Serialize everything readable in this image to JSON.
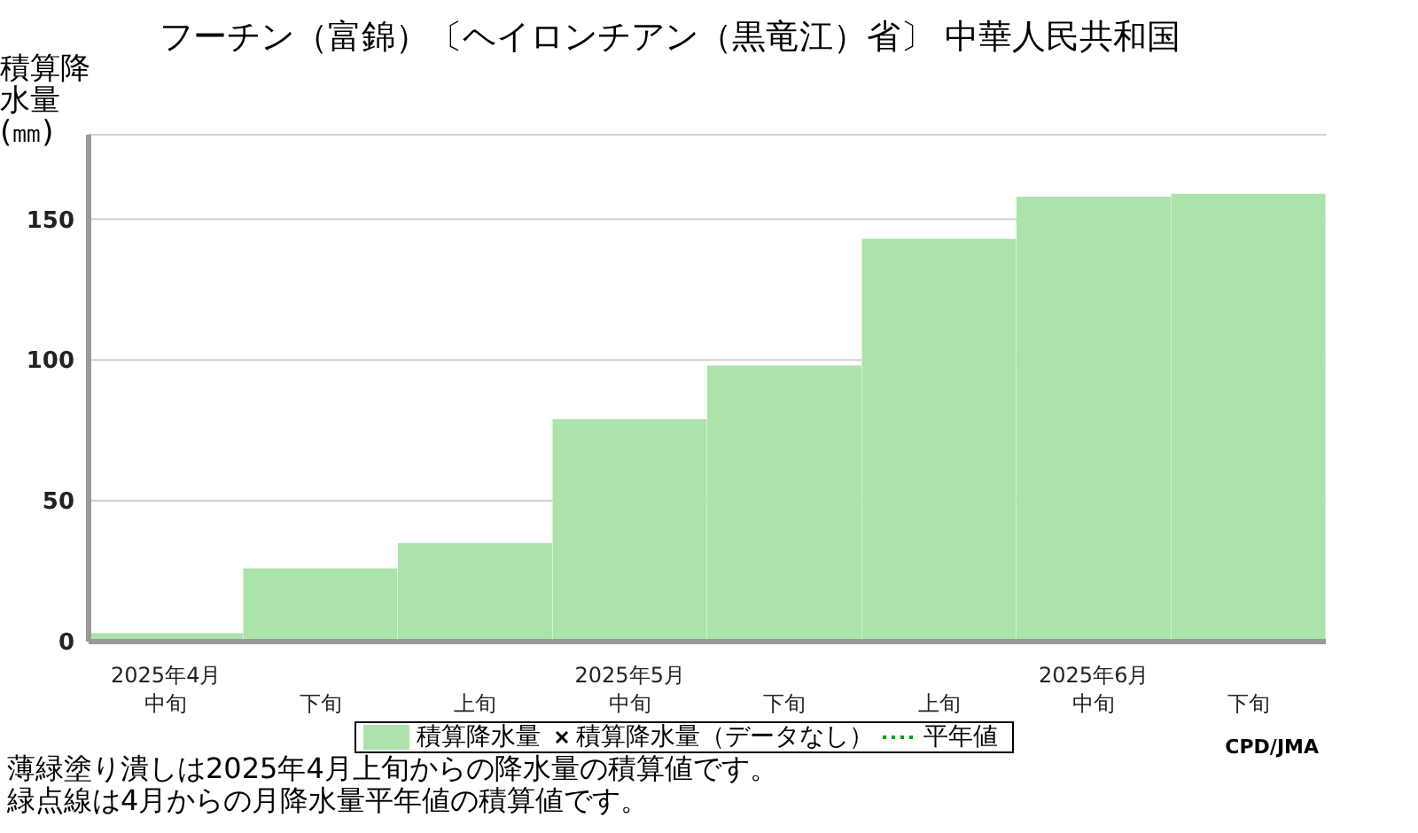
{
  "chart_data": {
    "type": "bar",
    "title": "フーチン（富錦）〔ヘイロンチアン（黒竜江）省〕 中華人民共和国",
    "ylabel": "積算降水量(㎜)",
    "categories": [
      "2025年4月中旬",
      "下旬",
      "上旬",
      "2025年5月中旬",
      "下旬",
      "上旬",
      "2025年6月中旬",
      "下旬"
    ],
    "series": [
      {
        "name": "積算降水量",
        "color": "#abe3ab",
        "values": [
          3,
          26,
          35,
          79,
          98,
          143,
          158,
          159
        ]
      },
      {
        "name": "積算降水量（データなし）",
        "type": "scatter",
        "marker": "cross",
        "color": "#000000",
        "values": [
          null,
          null,
          null,
          null,
          null,
          null,
          null,
          null
        ]
      },
      {
        "name": "平年値",
        "type": "line",
        "line_style": "dotted",
        "color": "#00a000",
        "values": [
          null,
          null,
          null,
          null,
          null,
          null,
          null,
          null
        ]
      }
    ],
    "ylim": [
      0,
      180
    ],
    "yticks": [
      0,
      50,
      100,
      150
    ],
    "grid": "y",
    "legend": "bottom",
    "annotations": [
      "CPD/JMA",
      "薄緑塗り潰しは2025年4月上旬からの降水量の積算値です。",
      "緑点線は4月からの月降水量平年値の積算値です。"
    ]
  }
}
